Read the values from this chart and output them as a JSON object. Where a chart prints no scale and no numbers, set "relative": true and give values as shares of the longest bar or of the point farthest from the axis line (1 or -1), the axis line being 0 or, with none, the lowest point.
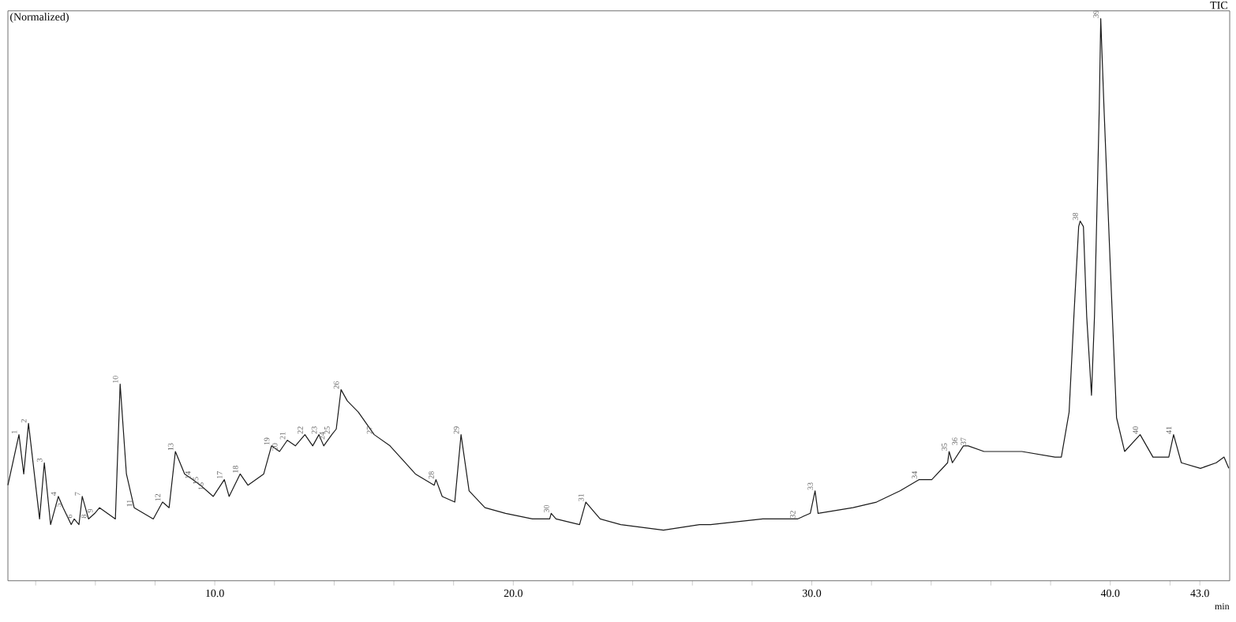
{
  "chart_data": {
    "type": "line",
    "relative": true,
    "xlabel": "min",
    "color": "#1a1a1a",
    "xlim": [
      3.07,
      44.0
    ],
    "xticks": [
      {
        "value": 4,
        "label": null
      },
      {
        "value": 6,
        "label": null
      },
      {
        "value": 8,
        "label": null
      },
      {
        "value": 10,
        "label": "10.0"
      },
      {
        "value": 12,
        "label": null
      },
      {
        "value": 14,
        "label": null
      },
      {
        "value": 16,
        "label": null
      },
      {
        "value": 18,
        "label": null
      },
      {
        "value": 20,
        "label": "20.0"
      },
      {
        "value": 22,
        "label": null
      },
      {
        "value": 24,
        "label": null
      },
      {
        "value": 26,
        "label": null
      },
      {
        "value": 28,
        "label": null
      },
      {
        "value": 30,
        "label": "30.0"
      },
      {
        "value": 32,
        "label": null
      },
      {
        "value": 34,
        "label": null
      },
      {
        "value": 36,
        "label": null
      },
      {
        "value": 38,
        "label": null
      },
      {
        "value": 40,
        "label": "40.0"
      },
      {
        "value": 42,
        "label": null
      },
      {
        "value": 43,
        "label": "43.0"
      }
    ],
    "x": [
      3.07,
      3.44,
      3.6,
      3.76,
      4.13,
      4.29,
      4.5,
      4.76,
      4.92,
      5.19,
      5.29,
      5.45,
      5.56,
      5.77,
      5.98,
      6.14,
      6.67,
      6.83,
      7.04,
      7.3,
      7.94,
      8.25,
      8.47,
      8.68,
      8.99,
      9.26,
      9.52,
      9.95,
      10.32,
      10.48,
      10.85,
      11.11,
      11.64,
      11.9,
      12.17,
      12.43,
      12.7,
      13.02,
      13.28,
      13.49,
      13.65,
      13.92,
      14.07,
      14.23,
      14.44,
      14.81,
      15.34,
      15.87,
      16.72,
      17.35,
      17.41,
      17.62,
      18.04,
      18.25,
      18.52,
      19.05,
      19.74,
      20.64,
      21.22,
      21.27,
      21.43,
      22.22,
      22.43,
      22.75,
      22.91,
      23.6,
      25.03,
      26.24,
      26.61,
      28.36,
      29.52,
      29.95,
      30.11,
      30.21,
      31.38,
      32.17,
      32.96,
      33.6,
      34.02,
      34.55,
      34.6,
      34.71,
      35.08,
      35.24,
      35.77,
      37.04,
      38.15,
      38.36,
      38.62,
      38.78,
      38.94,
      38.99,
      39.1,
      39.21,
      39.37,
      39.47,
      39.63,
      39.68,
      39.79,
      40.0,
      40.21,
      40.48,
      41.0,
      41.43,
      41.96,
      42.12,
      42.38,
      43.02,
      43.55,
      43.81,
      43.97
    ],
    "values": [
      0.17,
      0.26,
      0.19,
      0.28,
      0.11,
      0.21,
      0.1,
      0.15,
      0.13,
      0.1,
      0.11,
      0.1,
      0.15,
      0.11,
      0.12,
      0.13,
      0.11,
      0.35,
      0.19,
      0.13,
      0.11,
      0.14,
      0.13,
      0.23,
      0.19,
      0.18,
      0.17,
      0.15,
      0.18,
      0.15,
      0.19,
      0.17,
      0.19,
      0.24,
      0.23,
      0.25,
      0.24,
      0.26,
      0.24,
      0.26,
      0.24,
      0.26,
      0.27,
      0.34,
      0.32,
      0.3,
      0.26,
      0.24,
      0.19,
      0.17,
      0.18,
      0.15,
      0.14,
      0.26,
      0.16,
      0.13,
      0.12,
      0.11,
      0.11,
      0.12,
      0.11,
      0.1,
      0.14,
      0.12,
      0.11,
      0.1,
      0.09,
      0.1,
      0.1,
      0.11,
      0.11,
      0.12,
      0.16,
      0.12,
      0.13,
      0.14,
      0.16,
      0.18,
      0.18,
      0.21,
      0.23,
      0.21,
      0.24,
      0.24,
      0.23,
      0.23,
      0.22,
      0.22,
      0.3,
      0.47,
      0.63,
      0.64,
      0.63,
      0.47,
      0.33,
      0.47,
      0.84,
      1.0,
      0.84,
      0.56,
      0.29,
      0.23,
      0.26,
      0.22,
      0.22,
      0.26,
      0.21,
      0.2,
      0.21,
      0.22,
      0.2
    ],
    "annotations": [
      "(Normalized)",
      "TIC",
      {
        "text": "1",
        "x": 3.44,
        "y": 0.26
      },
      {
        "text": "2",
        "x": 3.76,
        "y": 0.28
      },
      {
        "text": "3",
        "x": 4.29,
        "y": 0.21
      },
      {
        "text": "4",
        "x": 4.76,
        "y": 0.15
      },
      {
        "text": "5",
        "x": 4.92,
        "y": 0.13
      },
      {
        "text": "6",
        "x": 5.29,
        "y": 0.11
      },
      {
        "text": "7",
        "x": 5.56,
        "y": 0.15
      },
      {
        "text": "8",
        "x": 5.77,
        "y": 0.11
      },
      {
        "text": "9",
        "x": 5.98,
        "y": 0.12
      },
      {
        "text": "10",
        "x": 6.83,
        "y": 0.35
      },
      {
        "text": "11",
        "x": 7.3,
        "y": 0.13
      },
      {
        "text": "12",
        "x": 8.25,
        "y": 0.14
      },
      {
        "text": "13",
        "x": 8.68,
        "y": 0.23
      },
      {
        "text": "14",
        "x": 9.26,
        "y": 0.18
      },
      {
        "text": "15",
        "x": 9.52,
        "y": 0.17
      },
      {
        "text": "16",
        "x": 9.7,
        "y": 0.16
      },
      {
        "text": "17",
        "x": 10.32,
        "y": 0.18
      },
      {
        "text": "18",
        "x": 10.85,
        "y": 0.19
      },
      {
        "text": "19",
        "x": 11.9,
        "y": 0.24
      },
      {
        "text": "20",
        "x": 12.17,
        "y": 0.23
      },
      {
        "text": "21",
        "x": 12.43,
        "y": 0.25
      },
      {
        "text": "22",
        "x": 13.02,
        "y": 0.26
      },
      {
        "text": "23",
        "x": 13.49,
        "y": 0.26
      },
      {
        "text": "24",
        "x": 13.75,
        "y": 0.25
      },
      {
        "text": "25",
        "x": 13.92,
        "y": 0.26
      },
      {
        "text": "26",
        "x": 14.23,
        "y": 0.34
      },
      {
        "text": "27",
        "x": 15.34,
        "y": 0.26
      },
      {
        "text": "28",
        "x": 17.41,
        "y": 0.18
      },
      {
        "text": "29",
        "x": 18.25,
        "y": 0.26
      },
      {
        "text": "30",
        "x": 21.27,
        "y": 0.12
      },
      {
        "text": "31",
        "x": 22.43,
        "y": 0.14
      },
      {
        "text": "32",
        "x": 29.52,
        "y": 0.11
      },
      {
        "text": "33",
        "x": 30.11,
        "y": 0.16
      },
      {
        "text": "34",
        "x": 33.6,
        "y": 0.18
      },
      {
        "text": "35",
        "x": 34.6,
        "y": 0.23
      },
      {
        "text": "36",
        "x": 34.95,
        "y": 0.24
      },
      {
        "text": "37",
        "x": 35.24,
        "y": 0.24
      },
      {
        "text": "38",
        "x": 38.99,
        "y": 0.64
      },
      {
        "text": "39",
        "x": 39.68,
        "y": 1.0
      },
      {
        "text": "40",
        "x": 41.0,
        "y": 0.26
      },
      {
        "text": "41",
        "x": 42.12,
        "y": 0.26
      }
    ]
  }
}
